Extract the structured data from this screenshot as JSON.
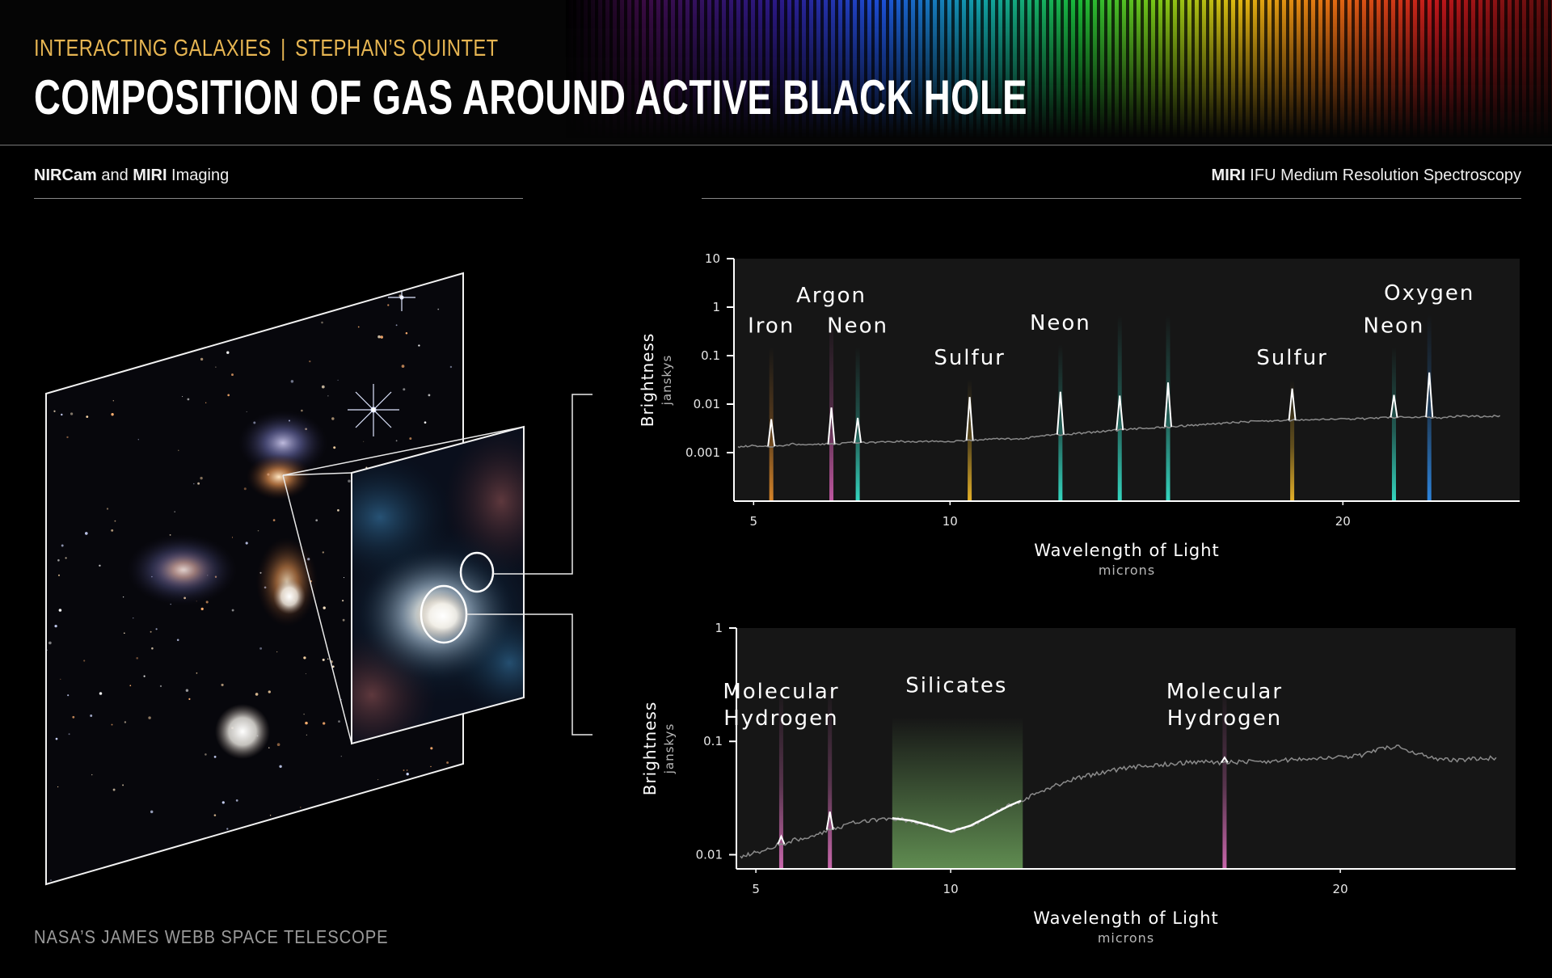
{
  "header": {
    "kicker_left": "INTERACTING GALAXIES",
    "kicker_right": "STEPHAN’S QUINTET",
    "title": "COMPOSITION OF GAS AROUND ACTIVE BLACK HOLE"
  },
  "left_panel": {
    "title_bold_1": "NIRCam",
    "title_mid": " and ",
    "title_bold_2": "MIRI",
    "title_rest": " Imaging"
  },
  "right_panel": {
    "title_bold": "MIRI",
    "title_rest": " IFU Medium Resolution Spectroscopy"
  },
  "footer": "NASA’S JAMES WEBB SPACE TELESCOPE",
  "colors": {
    "accent": "#e6b552",
    "iron": "#e08a2a",
    "argon": "#c85aa8",
    "neon": "#36e0c8",
    "sulfur": "#f0b92a",
    "oxygen": "#2f8ae6",
    "molecular_hydrogen": "#d26cb4",
    "silicates": "#7fbf6a",
    "spectrum": "#8a8a8a",
    "plot_bg": "#161616"
  },
  "chart_data": [
    {
      "type": "line",
      "xlabel": "Wavelength of Light",
      "xunit": "microns",
      "ylabel": "Brightness",
      "yunit": "janskys",
      "yscale": "log",
      "xlim": [
        4.5,
        24.5
      ],
      "ylim": [
        0.0001,
        10
      ],
      "xticks": [
        {
          "value": 5,
          "label": "5"
        },
        {
          "value": 10,
          "label": "10"
        },
        {
          "value": 20,
          "label": "20"
        }
      ],
      "yticks": [
        {
          "value": 10,
          "label": "10"
        },
        {
          "value": 1,
          "label": "1"
        },
        {
          "value": 0.1,
          "label": "0.1"
        },
        {
          "value": 0.01,
          "label": "0.01"
        },
        {
          "value": 0.001,
          "label": "0.001"
        }
      ],
      "series": [
        {
          "x": [
            4.6,
            5.0,
            5.5,
            6.0,
            6.5,
            7.0,
            7.5,
            8.0,
            8.5,
            9.0,
            9.5,
            10.0,
            10.5,
            11.0,
            11.5,
            12.0,
            12.5,
            13.0,
            13.5,
            14.0,
            14.5,
            15.0,
            15.5,
            16.0,
            16.5,
            17.0,
            17.5,
            18.0,
            18.5,
            19.0,
            19.5,
            20.0,
            20.5,
            21.0,
            21.5,
            22.0,
            22.5,
            23.0,
            23.5,
            24.0
          ],
          "y": [
            0.0013,
            0.0014,
            0.00135,
            0.0015,
            0.0015,
            0.0015,
            0.0016,
            0.0016,
            0.0017,
            0.0017,
            0.0017,
            0.0017,
            0.0018,
            0.0019,
            0.0019,
            0.002,
            0.0023,
            0.0024,
            0.0026,
            0.0028,
            0.003,
            0.0032,
            0.0034,
            0.0036,
            0.0038,
            0.0041,
            0.0043,
            0.0045,
            0.0046,
            0.0047,
            0.0048,
            0.0049,
            0.005,
            0.0052,
            0.0054,
            0.0055,
            0.0052,
            0.0057,
            0.0055,
            0.0058
          ]
        }
      ],
      "emission_lines": [
        {
          "x": 5.45,
          "peak": 0.0049,
          "label": "Iron",
          "element": "iron",
          "label_y": 0.3
        },
        {
          "x": 6.98,
          "peak": 0.0085,
          "label": "Argon",
          "element": "argon",
          "label_y": 1.25
        },
        {
          "x": 7.65,
          "peak": 0.0052,
          "label": "Neon",
          "element": "neon",
          "label_y": 0.3
        },
        {
          "x": 10.5,
          "peak": 0.014,
          "label": "Sulfur",
          "element": "sulfur",
          "label_y": 0.065
        },
        {
          "x": 12.81,
          "peak": 0.018,
          "label": "Neon",
          "element": "neon",
          "label_y": 0.34
        },
        {
          "x": 14.32,
          "peak": 0.015,
          "label": "",
          "element": "neon",
          "label_y": 0
        },
        {
          "x": 15.55,
          "peak": 0.028,
          "label": "",
          "element": "neon",
          "label_y": 0
        },
        {
          "x": 18.71,
          "peak": 0.021,
          "label": "Sulfur",
          "element": "sulfur",
          "label_y": 0.065
        },
        {
          "x": 21.3,
          "peak": 0.0155,
          "label": "Neon",
          "element": "neon",
          "label_y": 0.3
        },
        {
          "x": 22.2,
          "peak": 0.045,
          "label": "Oxygen",
          "element": "oxygen",
          "label_y": 1.4
        }
      ]
    },
    {
      "type": "line",
      "xlabel": "Wavelength of Light",
      "xunit": "microns",
      "ylabel": "Brightness",
      "yunit": "janskys",
      "yscale": "log",
      "xlim": [
        4.5,
        24.5
      ],
      "ylim": [
        0.0075,
        1
      ],
      "xticks": [
        {
          "value": 5,
          "label": "5"
        },
        {
          "value": 10,
          "label": "10"
        },
        {
          "value": 20,
          "label": "20"
        }
      ],
      "yticks": [
        {
          "value": 1,
          "label": "1"
        },
        {
          "value": 0.1,
          "label": "0.1"
        },
        {
          "value": 0.01,
          "label": "0.01"
        }
      ],
      "series": [
        {
          "x": [
            4.6,
            5.0,
            5.5,
            6.0,
            6.5,
            7.0,
            7.5,
            8.0,
            8.5,
            9.0,
            9.5,
            10.0,
            10.5,
            11.0,
            11.5,
            12.0,
            12.5,
            13.0,
            13.5,
            14.0,
            14.5,
            15.0,
            15.5,
            16.0,
            16.5,
            17.0,
            17.5,
            18.0,
            18.5,
            19.0,
            19.5,
            20.0,
            20.5,
            21.0,
            21.5,
            22.0,
            22.5,
            23.0,
            23.5,
            24.0
          ],
          "y": [
            0.0095,
            0.0105,
            0.012,
            0.0135,
            0.015,
            0.017,
            0.019,
            0.02,
            0.021,
            0.02,
            0.018,
            0.016,
            0.018,
            0.022,
            0.027,
            0.032,
            0.038,
            0.045,
            0.05,
            0.054,
            0.058,
            0.061,
            0.063,
            0.065,
            0.066,
            0.065,
            0.066,
            0.066,
            0.068,
            0.069,
            0.07,
            0.072,
            0.075,
            0.085,
            0.09,
            0.078,
            0.07,
            0.068,
            0.07,
            0.072
          ]
        }
      ],
      "feature_labels": [
        {
          "x": 5.65,
          "y": 0.24,
          "lines": [
            "Molecular",
            "Hydrogen"
          ],
          "element": "molecular_hydrogen"
        },
        {
          "x": 6.9,
          "y": 0.24,
          "lines": [],
          "element": "molecular_hydrogen"
        },
        {
          "x": 10.15,
          "y": 0.27,
          "lines": [
            "Silicates"
          ],
          "element": "silicates"
        },
        {
          "x": 17.03,
          "y": 0.24,
          "lines": [
            "Molecular",
            "Hydrogen"
          ],
          "element": "molecular_hydrogen"
        }
      ],
      "silicate_band": [
        8.5,
        11.85
      ],
      "emission_lines": [
        {
          "x": 5.65,
          "peak": 0.0145,
          "element": "molecular_hydrogen"
        },
        {
          "x": 6.9,
          "peak": 0.024,
          "element": "molecular_hydrogen"
        },
        {
          "x": 17.03,
          "peak": 0.072,
          "element": "molecular_hydrogen"
        }
      ]
    }
  ]
}
